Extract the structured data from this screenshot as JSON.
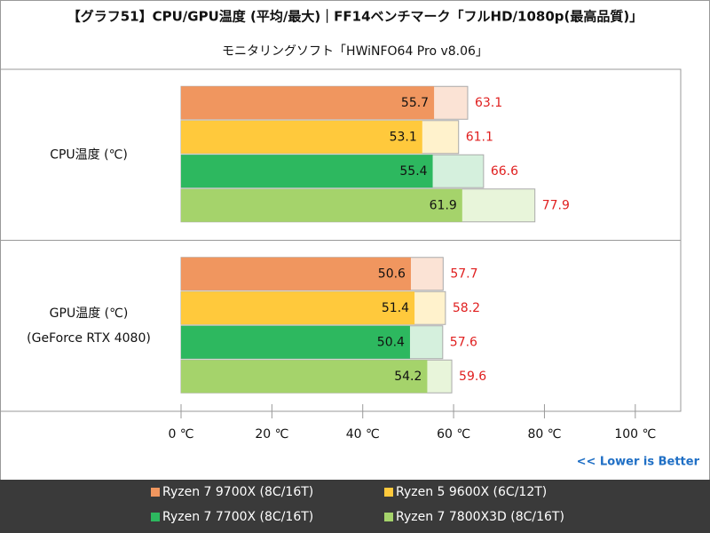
{
  "chart_data": {
    "type": "bar",
    "title": "【グラフ51】CPU/GPU温度 (平均/最大)｜FF14ベンチマーク「フルHD/1080p(最高品質)」",
    "subtitle": "モニタリングソフト「HWiNFO64 Pro v8.06」",
    "annotation": "<< Lower is Better",
    "orientation": "horizontal",
    "categories": [
      [
        "CPU温度 (℃)"
      ],
      [
        "GPU温度 (℃)",
        "(GeForce RTX 4080)"
      ]
    ],
    "series": [
      {
        "name": "Ryzen 7 9700X (8C/16T)",
        "color": "#f0965f",
        "max_color": "#fbe3d5",
        "values": [
          55.7,
          50.6
        ],
        "max_values": [
          63.1,
          57.7
        ]
      },
      {
        "name": "Ryzen 5 9600X (6C/12T)",
        "color": "#ffc93c",
        "max_color": "#fff2cc",
        "values": [
          53.1,
          51.4
        ],
        "max_values": [
          61.1,
          58.2
        ]
      },
      {
        "name": "Ryzen 7 7700X (8C/16T)",
        "color": "#2db85f",
        "max_color": "#d5f0dd",
        "values": [
          55.4,
          50.4
        ],
        "max_values": [
          66.6,
          57.6
        ]
      },
      {
        "name": "Ryzen 7 7800X3D (8C/16T)",
        "color": "#a5d36b",
        "max_color": "#e8f5da",
        "values": [
          61.9,
          54.2
        ],
        "max_values": [
          77.9,
          59.6
        ]
      }
    ],
    "xlim": [
      0,
      110
    ],
    "xticks": [
      {
        "value": 0,
        "label": "0 ℃"
      },
      {
        "value": 20,
        "label": "20 ℃"
      },
      {
        "value": 40,
        "label": "40 ℃"
      },
      {
        "value": 60,
        "label": "60 ℃"
      },
      {
        "value": 80,
        "label": "80 ℃"
      },
      {
        "value": 100,
        "label": "100 ℃"
      }
    ]
  }
}
